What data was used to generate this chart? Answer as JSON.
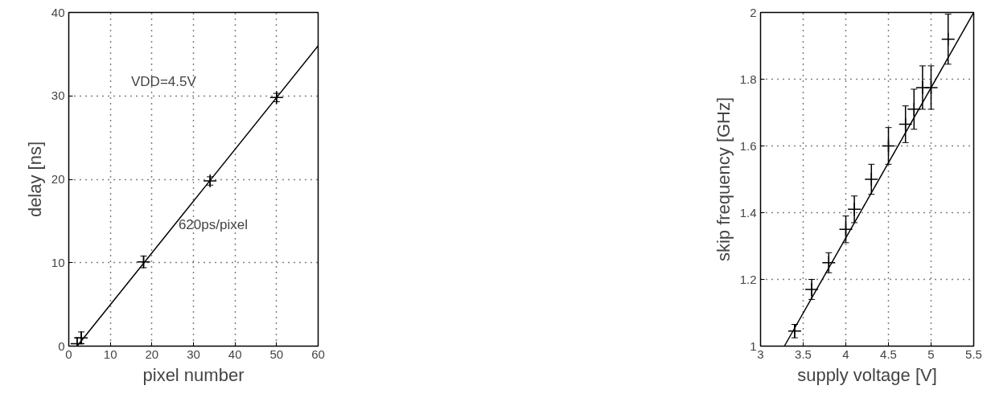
{
  "chart_data": [
    {
      "type": "scatter",
      "xlabel": "pixel number",
      "ylabel": "delay [ns]",
      "xlim": [
        0,
        60
      ],
      "ylim": [
        0,
        40
      ],
      "xticks": [
        0,
        10,
        20,
        30,
        40,
        50,
        60
      ],
      "yticks": [
        0,
        10,
        20,
        30,
        40
      ],
      "grid": true,
      "marker": "cross",
      "annotations": [
        "VDD=4.5V",
        "620ps/pixel"
      ],
      "series": [
        {
          "color": "#000000",
          "x": [
            2,
            3,
            18,
            34,
            50
          ],
          "values": [
            0.3,
            1.0,
            10.1,
            19.8,
            29.8
          ],
          "errors": [
            0.7,
            0.7,
            0.7,
            0.5,
            0.5
          ]
        },
        {
          "type": "line",
          "color": "#000000",
          "x": [
            2,
            60
          ],
          "values": [
            0.0,
            36
          ],
          "line_style": "solid",
          "marker": "none"
        }
      ]
    },
    {
      "type": "scatter",
      "xlabel": "supply voltage [V]",
      "ylabel": "skip frequency [GHz]",
      "xlim": [
        3,
        5.5
      ],
      "ylim": [
        1,
        2
      ],
      "xticks": [
        3,
        3.5,
        4,
        4.5,
        5,
        5.5
      ],
      "yticks": [
        1,
        1.2,
        1.4,
        1.6,
        1.8,
        2
      ],
      "grid": true,
      "marker": "cross",
      "series": [
        {
          "color": "#000000",
          "x": [
            3.4,
            3.6,
            3.8,
            4.0,
            4.1,
            4.3,
            4.5,
            4.7,
            4.8,
            4.9,
            5.0,
            5.2
          ],
          "values": [
            1.045,
            1.17,
            1.25,
            1.35,
            1.41,
            1.5,
            1.6,
            1.665,
            1.71,
            1.775,
            1.775,
            1.92
          ],
          "errors": [
            0.02,
            0.03,
            0.03,
            0.04,
            0.04,
            0.045,
            0.055,
            0.055,
            0.06,
            0.065,
            0.065,
            0.075
          ]
        },
        {
          "type": "line",
          "color": "#000000",
          "x": [
            3.28,
            5.5
          ],
          "values": [
            1.0,
            2.0
          ],
          "line_style": "solid",
          "marker": "none"
        }
      ]
    }
  ]
}
